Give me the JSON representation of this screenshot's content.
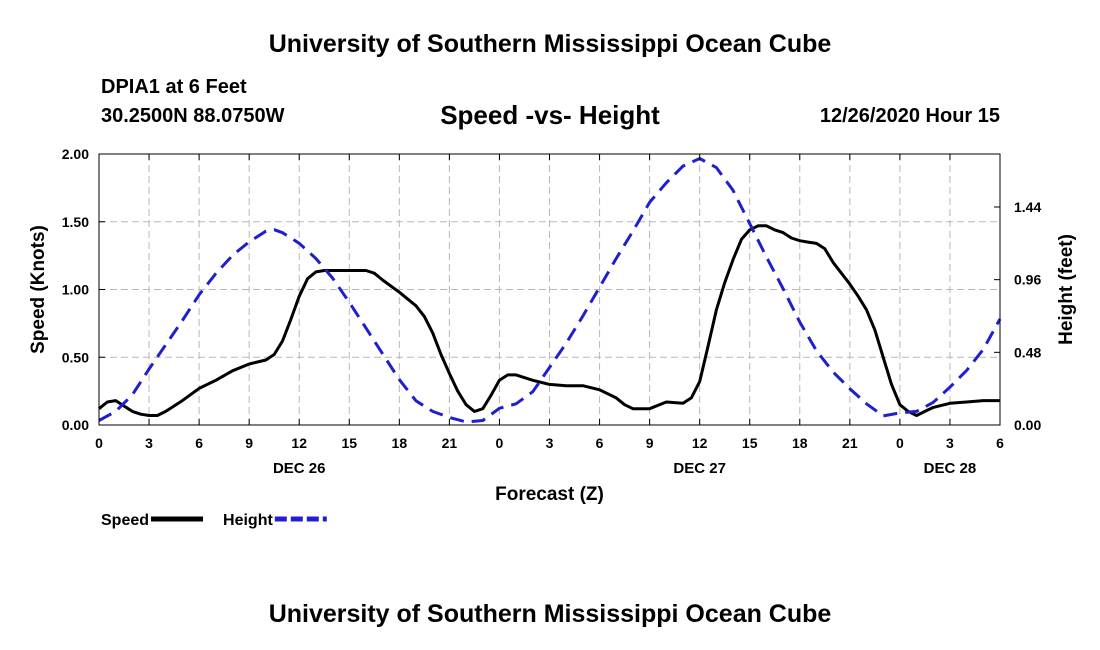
{
  "header": {
    "title": "University of Southern Mississippi Ocean Cube",
    "station": "DPIA1 at 6 Feet",
    "coords": "30.2500N 88.0750W",
    "subtitle": "Speed -vs- Height",
    "datetime": "12/26/2020 Hour 15"
  },
  "footer": {
    "title": "University of Southern Mississippi Ocean Cube"
  },
  "chart_data": {
    "type": "line",
    "xlabel": "Forecast (Z)",
    "ylabel": "Speed (Knots)",
    "y2label": "Height (feet)",
    "xlim": [
      0,
      54
    ],
    "ylim": [
      0,
      2.0
    ],
    "y2lim": [
      0,
      1.79
    ],
    "x_ticks": [
      0,
      3,
      6,
      9,
      12,
      15,
      18,
      21,
      24,
      27,
      30,
      33,
      36,
      39,
      42,
      45,
      48,
      51,
      54
    ],
    "x_tick_labels": [
      "0",
      "3",
      "6",
      "9",
      "12",
      "15",
      "18",
      "21",
      "0",
      "3",
      "6",
      "9",
      "12",
      "15",
      "18",
      "21",
      "0",
      "3",
      "6"
    ],
    "y_ticks": [
      0,
      0.5,
      1.0,
      1.5,
      2.0
    ],
    "y_tick_labels": [
      "0.00",
      "0.50",
      "1.00",
      "1.50",
      "2.00"
    ],
    "y2_ticks": [
      0,
      0.48,
      0.96,
      1.44
    ],
    "y2_tick_labels": [
      "0.00",
      "0.48",
      "0.96",
      "1.44"
    ],
    "day_labels": [
      {
        "x": 12,
        "label": "DEC 26"
      },
      {
        "x": 36,
        "label": "DEC 27"
      },
      {
        "x": 51,
        "label": "DEC 28"
      }
    ],
    "grid": true,
    "legend_position": "bottom-left",
    "series": [
      {
        "name": "Speed",
        "axis": "left",
        "color": "#000000",
        "style": "solid",
        "points": [
          [
            0,
            0.12
          ],
          [
            0.5,
            0.17
          ],
          [
            1,
            0.18
          ],
          [
            1.5,
            0.14
          ],
          [
            2,
            0.1
          ],
          [
            2.5,
            0.08
          ],
          [
            3,
            0.07
          ],
          [
            3.5,
            0.07
          ],
          [
            4,
            0.1
          ],
          [
            5,
            0.18
          ],
          [
            6,
            0.27
          ],
          [
            7,
            0.33
          ],
          [
            8,
            0.4
          ],
          [
            9,
            0.45
          ],
          [
            10,
            0.48
          ],
          [
            10.5,
            0.52
          ],
          [
            11,
            0.62
          ],
          [
            11.5,
            0.78
          ],
          [
            12,
            0.95
          ],
          [
            12.5,
            1.08
          ],
          [
            13,
            1.13
          ],
          [
            13.5,
            1.14
          ],
          [
            14,
            1.14
          ],
          [
            15,
            1.14
          ],
          [
            16,
            1.14
          ],
          [
            16.5,
            1.12
          ],
          [
            17,
            1.07
          ],
          [
            18,
            0.98
          ],
          [
            19,
            0.88
          ],
          [
            19.5,
            0.8
          ],
          [
            20,
            0.68
          ],
          [
            20.5,
            0.52
          ],
          [
            21,
            0.38
          ],
          [
            21.5,
            0.25
          ],
          [
            22,
            0.15
          ],
          [
            22.5,
            0.1
          ],
          [
            23,
            0.12
          ],
          [
            23.5,
            0.22
          ],
          [
            24,
            0.33
          ],
          [
            24.5,
            0.37
          ],
          [
            25,
            0.37
          ],
          [
            26,
            0.33
          ],
          [
            27,
            0.3
          ],
          [
            28,
            0.29
          ],
          [
            29,
            0.29
          ],
          [
            30,
            0.26
          ],
          [
            31,
            0.2
          ],
          [
            31.5,
            0.15
          ],
          [
            32,
            0.12
          ],
          [
            33,
            0.12
          ],
          [
            34,
            0.17
          ],
          [
            35,
            0.16
          ],
          [
            35.5,
            0.2
          ],
          [
            36,
            0.32
          ],
          [
            36.5,
            0.58
          ],
          [
            37,
            0.85
          ],
          [
            37.5,
            1.05
          ],
          [
            38,
            1.22
          ],
          [
            38.5,
            1.37
          ],
          [
            39,
            1.44
          ],
          [
            39.5,
            1.47
          ],
          [
            40,
            1.47
          ],
          [
            40.5,
            1.44
          ],
          [
            41,
            1.42
          ],
          [
            41.5,
            1.38
          ],
          [
            42,
            1.36
          ],
          [
            42.5,
            1.35
          ],
          [
            43,
            1.34
          ],
          [
            43.5,
            1.3
          ],
          [
            44,
            1.2
          ],
          [
            45,
            1.04
          ],
          [
            45.5,
            0.95
          ],
          [
            46,
            0.85
          ],
          [
            46.5,
            0.7
          ],
          [
            47,
            0.5
          ],
          [
            47.5,
            0.3
          ],
          [
            48,
            0.15
          ],
          [
            48.5,
            0.1
          ],
          [
            49,
            0.07
          ],
          [
            49.5,
            0.1
          ],
          [
            50,
            0.13
          ],
          [
            51,
            0.16
          ],
          [
            52,
            0.17
          ],
          [
            53,
            0.18
          ],
          [
            54,
            0.18
          ]
        ]
      },
      {
        "name": "Height",
        "axis": "right",
        "color": "#1f1fcc",
        "style": "dashed",
        "points": [
          [
            0,
            0.03
          ],
          [
            1,
            0.09
          ],
          [
            2,
            0.2
          ],
          [
            3,
            0.37
          ],
          [
            4,
            0.53
          ],
          [
            5,
            0.69
          ],
          [
            6,
            0.86
          ],
          [
            7,
            1.0
          ],
          [
            8,
            1.12
          ],
          [
            9,
            1.21
          ],
          [
            10,
            1.28
          ],
          [
            10.5,
            1.29
          ],
          [
            11,
            1.27
          ],
          [
            12,
            1.2
          ],
          [
            13,
            1.1
          ],
          [
            14,
            0.97
          ],
          [
            15,
            0.81
          ],
          [
            16,
            0.64
          ],
          [
            17,
            0.47
          ],
          [
            18,
            0.3
          ],
          [
            19,
            0.16
          ],
          [
            20,
            0.09
          ],
          [
            21,
            0.05
          ],
          [
            22,
            0.02
          ],
          [
            23,
            0.03
          ],
          [
            24,
            0.11
          ],
          [
            25,
            0.14
          ],
          [
            26,
            0.22
          ],
          [
            27,
            0.38
          ],
          [
            28,
            0.54
          ],
          [
            29,
            0.72
          ],
          [
            30,
            0.91
          ],
          [
            31,
            1.1
          ],
          [
            32,
            1.28
          ],
          [
            33,
            1.47
          ],
          [
            34,
            1.6
          ],
          [
            35,
            1.71
          ],
          [
            36,
            1.76
          ],
          [
            37,
            1.7
          ],
          [
            38,
            1.55
          ],
          [
            39,
            1.33
          ],
          [
            40,
            1.11
          ],
          [
            41,
            0.9
          ],
          [
            42,
            0.68
          ],
          [
            43,
            0.49
          ],
          [
            44,
            0.35
          ],
          [
            45,
            0.24
          ],
          [
            46,
            0.14
          ],
          [
            47,
            0.06
          ],
          [
            48,
            0.08
          ],
          [
            49,
            0.09
          ],
          [
            50,
            0.15
          ],
          [
            51,
            0.25
          ],
          [
            52,
            0.36
          ],
          [
            53,
            0.5
          ],
          [
            54,
            0.7
          ]
        ]
      }
    ],
    "legend": [
      {
        "label": "Speed",
        "color": "#000000",
        "style": "solid"
      },
      {
        "label": "Height",
        "color": "#1f1fcc",
        "style": "dashed"
      }
    ]
  }
}
